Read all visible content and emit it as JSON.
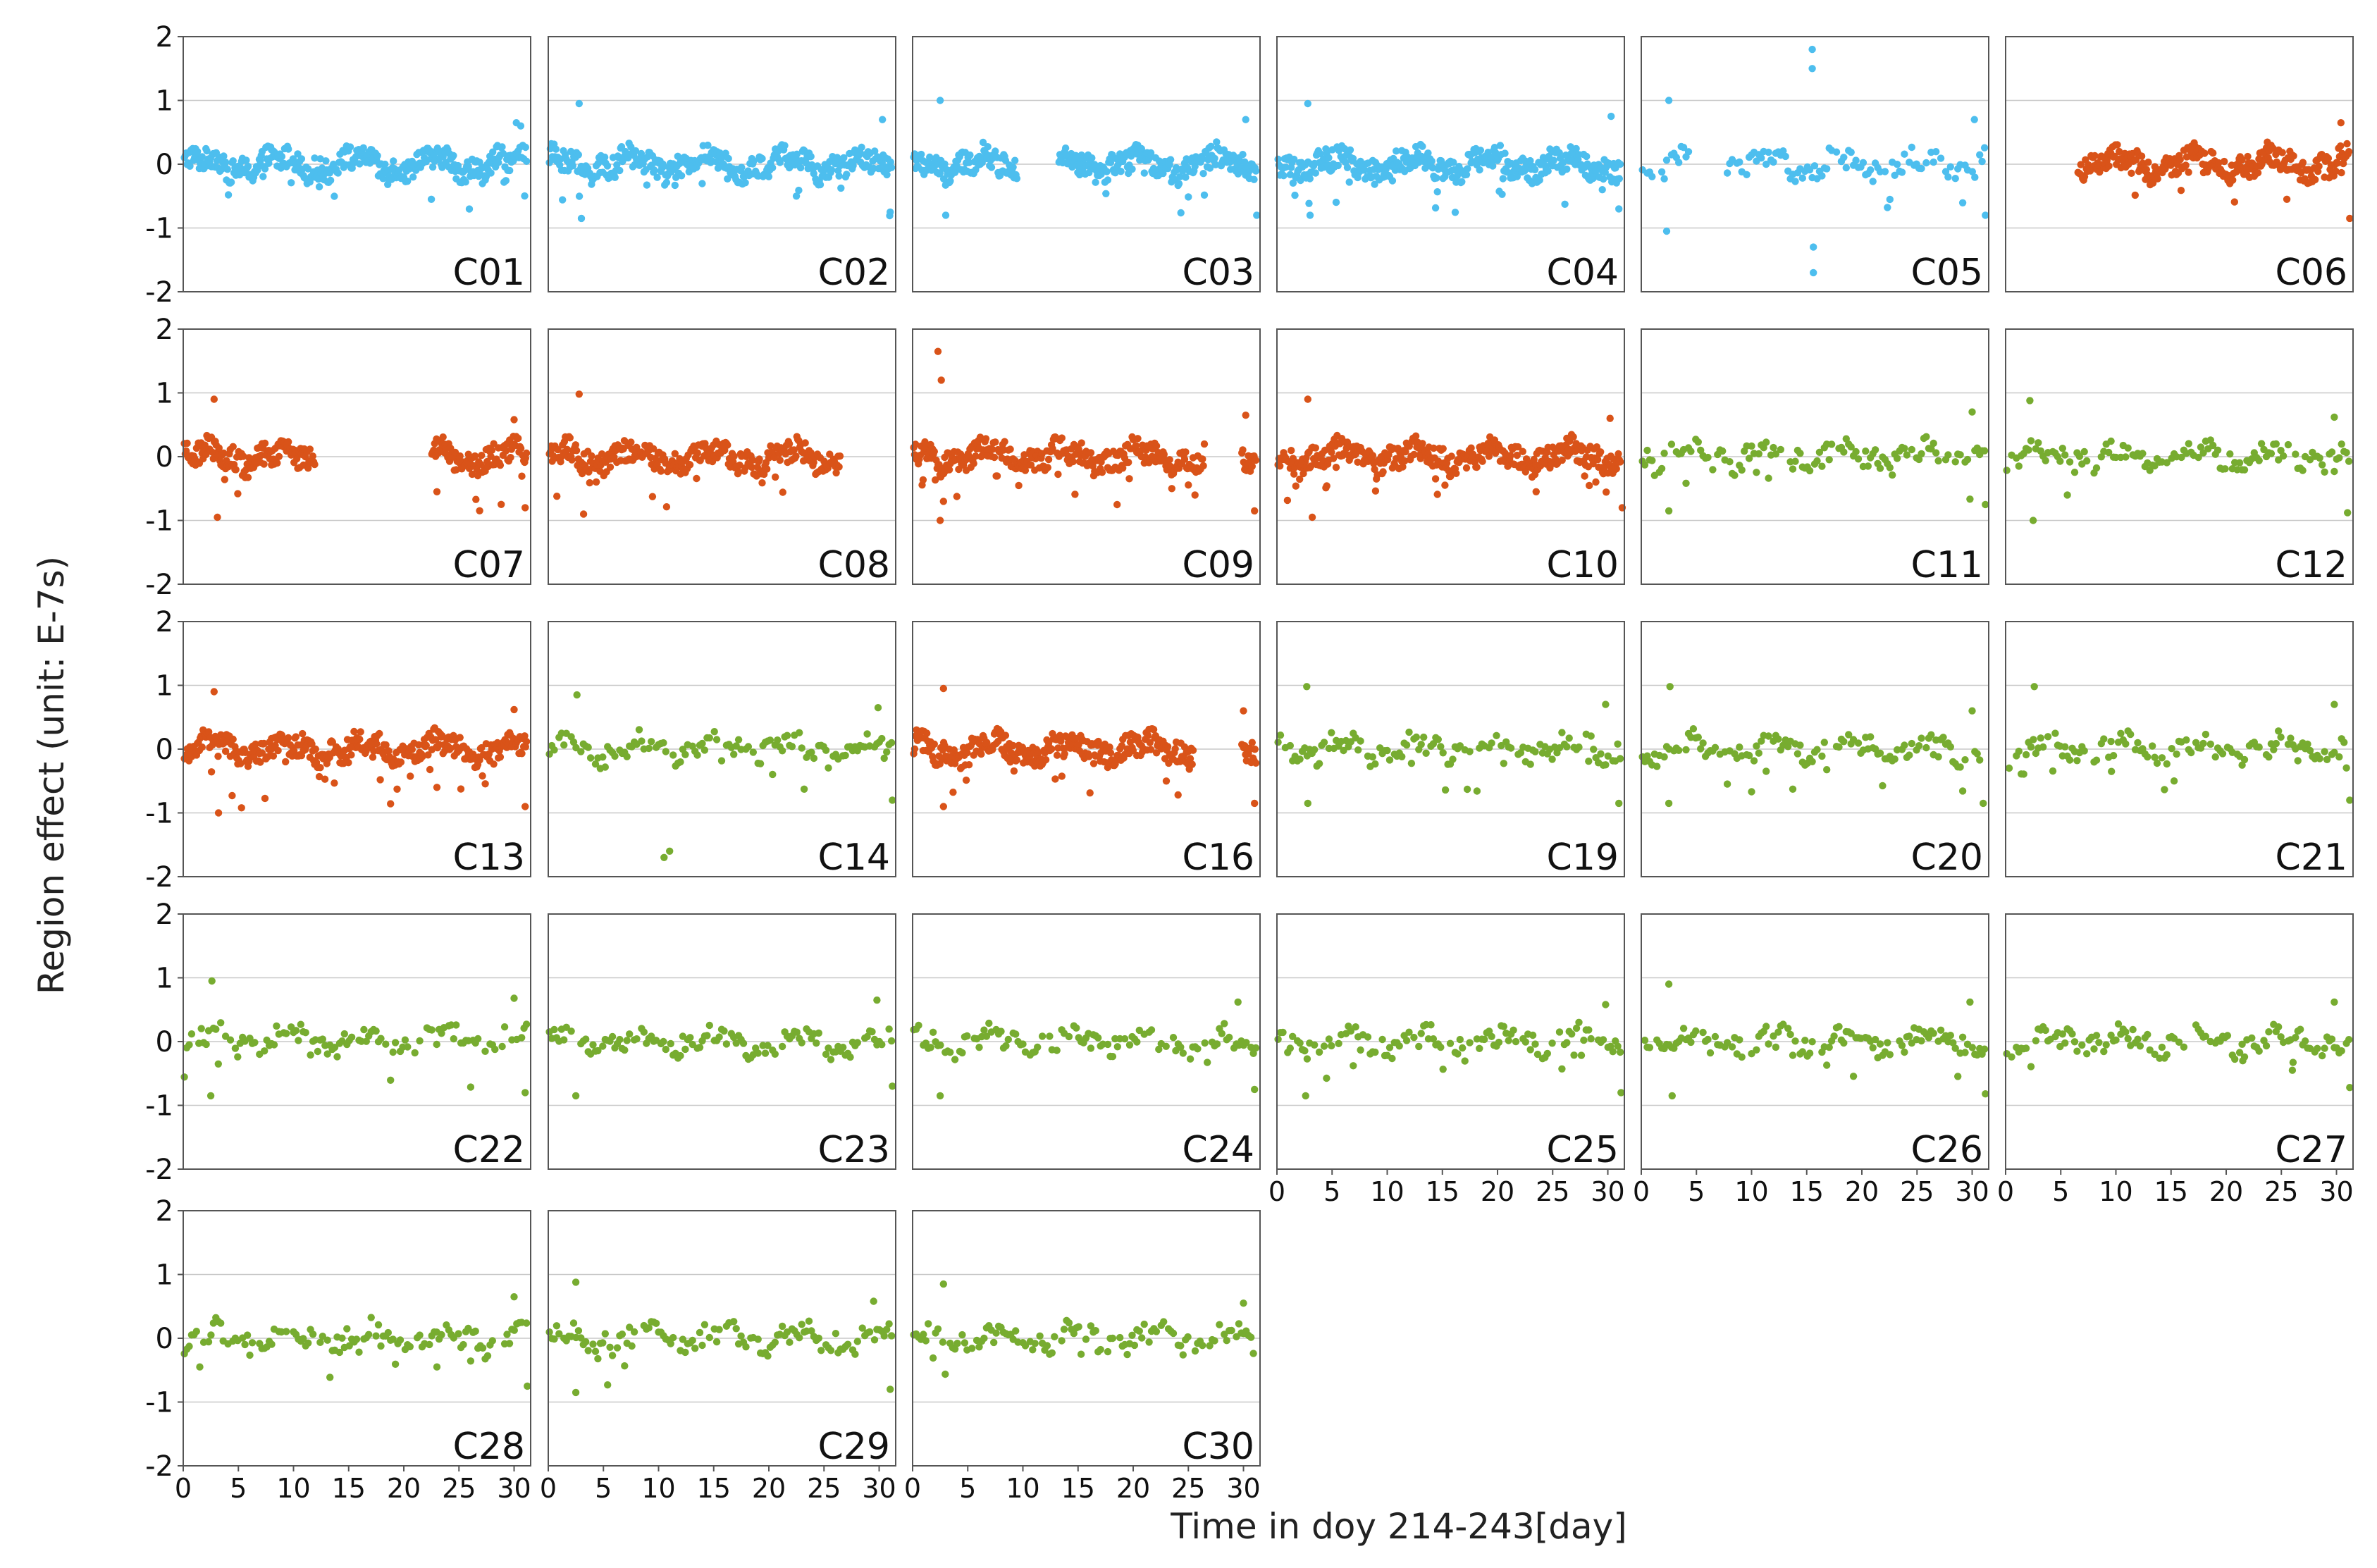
{
  "figure": {
    "ylabel": "Region effect (unit: E-7s)",
    "xlabel": "Time in doy 214-243[day]"
  },
  "colors": {
    "group_1": "#4DBEEE",
    "group_2": "#D95319",
    "group_3": "#77AC30",
    "frame": "#555555",
    "grid": "#c8c8c8"
  },
  "chart_data": {
    "type": "scatter",
    "layout": "small-multiples 5x6",
    "xlabel": "Time in doy 214-243[day]",
    "ylabel": "Region effect (unit: E-7s)",
    "xlim": [
      0,
      31.5
    ],
    "ylim": [
      -2,
      2
    ],
    "xticks": [
      0,
      5,
      10,
      15,
      20,
      25,
      30
    ],
    "xtick_labels": [
      "0",
      "5",
      "10",
      "15",
      "20",
      "25",
      "30"
    ],
    "yticks": [
      2,
      1,
      0,
      -1,
      -2
    ],
    "ytick_labels": [
      "2",
      "1",
      "0",
      "-1",
      "-2"
    ],
    "ygrid": true,
    "series": [
      {
        "name": "C01",
        "group": "group_1",
        "pattern": "dense",
        "gaps": [],
        "spikes": [
          [
            30.2,
            0.65
          ],
          [
            30.6,
            0.6
          ],
          [
            22.5,
            -0.55
          ]
        ]
      },
      {
        "name": "C02",
        "group": "group_1",
        "pattern": "dense",
        "gaps": [],
        "spikes": [
          [
            2.8,
            0.95
          ],
          [
            3.0,
            -0.85
          ],
          [
            30.3,
            0.7
          ],
          [
            31.0,
            -0.75
          ],
          [
            22.5,
            -0.5
          ]
        ]
      },
      {
        "name": "C03",
        "group": "group_1",
        "pattern": "dense",
        "gaps": [
          [
            9.5,
            13.2
          ]
        ],
        "spikes": [
          [
            2.5,
            1.0
          ],
          [
            3.0,
            -0.8
          ],
          [
            30.2,
            0.7
          ],
          [
            31.2,
            -0.8
          ]
        ]
      },
      {
        "name": "C04",
        "group": "group_1",
        "pattern": "dense",
        "gaps": [],
        "spikes": [
          [
            2.8,
            0.95
          ],
          [
            3.0,
            -0.8
          ],
          [
            30.3,
            0.75
          ],
          [
            31.0,
            -0.7
          ],
          [
            29.5,
            -0.4
          ]
        ]
      },
      {
        "name": "C05",
        "group": "group_1",
        "pattern": "sparse",
        "gaps": [
          [
            4.5,
            7.5
          ]
        ],
        "spikes": [
          [
            2.5,
            1.0
          ],
          [
            2.3,
            -1.05
          ],
          [
            15.5,
            1.8
          ],
          [
            15.5,
            1.5
          ],
          [
            15.6,
            -1.3
          ],
          [
            15.6,
            -1.7
          ],
          [
            30.2,
            0.7
          ],
          [
            31.2,
            -0.8
          ]
        ]
      },
      {
        "name": "C06",
        "group": "group_2",
        "pattern": "dense",
        "gaps": [
          [
            0,
            6.5
          ]
        ],
        "spikes": [
          [
            30.4,
            0.65
          ],
          [
            31.2,
            -0.85
          ],
          [
            25.5,
            -0.55
          ]
        ]
      },
      {
        "name": "C07",
        "group": "group_2",
        "pattern": "dense",
        "gaps": [
          [
            12,
            22.5
          ]
        ],
        "spikes": [
          [
            2.8,
            0.9
          ],
          [
            3.1,
            -0.95
          ],
          [
            30.0,
            0.58
          ],
          [
            31.0,
            -0.8
          ],
          [
            23.0,
            -0.55
          ]
        ]
      },
      {
        "name": "C08",
        "group": "group_2",
        "pattern": "dense",
        "gaps": [
          [
            26.5,
            31.5
          ]
        ],
        "spikes": [
          [
            2.8,
            0.98
          ],
          [
            3.2,
            -0.9
          ]
        ]
      },
      {
        "name": "C09",
        "group": "group_2",
        "pattern": "dense",
        "gaps": [
          [
            26.5,
            29.8
          ]
        ],
        "spikes": [
          [
            2.3,
            1.65
          ],
          [
            2.6,
            1.2
          ],
          [
            2.5,
            -1.0
          ],
          [
            2.8,
            -0.7
          ],
          [
            30.2,
            0.65
          ],
          [
            31.0,
            -0.85
          ],
          [
            23.5,
            -0.5
          ]
        ]
      },
      {
        "name": "C10",
        "group": "group_2",
        "pattern": "dense",
        "gaps": [],
        "spikes": [
          [
            2.8,
            0.9
          ],
          [
            3.2,
            -0.95
          ],
          [
            30.2,
            0.6
          ],
          [
            31.3,
            -0.8
          ],
          [
            23.5,
            -0.55
          ]
        ]
      },
      {
        "name": "C11",
        "group": "group_3",
        "pattern": "sparse",
        "gaps": [],
        "spikes": [
          [
            2.5,
            -0.85
          ],
          [
            30.0,
            0.7
          ],
          [
            31.2,
            -0.75
          ]
        ]
      },
      {
        "name": "C12",
        "group": "group_3",
        "pattern": "sparse",
        "gaps": [],
        "spikes": [
          [
            2.2,
            0.88
          ],
          [
            2.5,
            -1.0
          ],
          [
            29.8,
            0.62
          ],
          [
            31.0,
            -0.88
          ]
        ]
      },
      {
        "name": "C13",
        "group": "group_2",
        "pattern": "dense",
        "gaps": [],
        "spikes": [
          [
            2.8,
            0.9
          ],
          [
            3.2,
            -1.0
          ],
          [
            30.0,
            0.62
          ],
          [
            31.0,
            -0.9
          ],
          [
            23.0,
            -0.6
          ]
        ]
      },
      {
        "name": "C14",
        "group": "group_3",
        "pattern": "sparse",
        "gaps": [],
        "spikes": [
          [
            2.6,
            0.85
          ],
          [
            10.5,
            -1.7
          ],
          [
            11.0,
            -1.6
          ],
          [
            29.9,
            0.65
          ],
          [
            31.2,
            -0.8
          ]
        ]
      },
      {
        "name": "C16",
        "group": "group_2",
        "pattern": "dense",
        "gaps": [
          [
            25.5,
            29.8
          ]
        ],
        "spikes": [
          [
            2.8,
            0.95
          ],
          [
            2.8,
            -0.9
          ],
          [
            30.0,
            0.6
          ],
          [
            31.0,
            -0.85
          ],
          [
            23.0,
            -0.5
          ]
        ]
      },
      {
        "name": "C19",
        "group": "group_3",
        "pattern": "sparse",
        "gaps": [],
        "spikes": [
          [
            2.7,
            0.98
          ],
          [
            2.8,
            -0.85
          ],
          [
            29.8,
            0.7
          ],
          [
            31.0,
            -0.85
          ]
        ]
      },
      {
        "name": "C20",
        "group": "group_3",
        "pattern": "sparse",
        "gaps": [],
        "spikes": [
          [
            2.6,
            0.98
          ],
          [
            2.5,
            -0.85
          ],
          [
            30.0,
            0.6
          ],
          [
            31.0,
            -0.85
          ]
        ]
      },
      {
        "name": "C21",
        "group": "group_3",
        "pattern": "sparse",
        "gaps": [],
        "spikes": [
          [
            2.6,
            0.98
          ],
          [
            9.6,
            -0.35
          ],
          [
            29.8,
            0.7
          ],
          [
            31.2,
            -0.8
          ]
        ]
      },
      {
        "name": "C22",
        "group": "group_3",
        "pattern": "sparse",
        "gaps": [],
        "spikes": [
          [
            2.6,
            0.95
          ],
          [
            2.5,
            -0.85
          ],
          [
            30.0,
            0.68
          ],
          [
            31.0,
            -0.8
          ]
        ]
      },
      {
        "name": "C23",
        "group": "group_3",
        "pattern": "sparse",
        "gaps": [],
        "spikes": [
          [
            2.5,
            -0.85
          ],
          [
            29.8,
            0.65
          ],
          [
            31.2,
            -0.7
          ]
        ]
      },
      {
        "name": "C24",
        "group": "group_3",
        "pattern": "sparse",
        "gaps": [],
        "spikes": [
          [
            2.5,
            -0.85
          ],
          [
            29.5,
            0.62
          ],
          [
            31.0,
            -0.75
          ]
        ]
      },
      {
        "name": "C25",
        "group": "group_3",
        "pattern": "sparse",
        "gaps": [],
        "spikes": [
          [
            2.6,
            -0.85
          ],
          [
            29.8,
            0.58
          ],
          [
            31.2,
            -0.8
          ]
        ]
      },
      {
        "name": "C26",
        "group": "group_3",
        "pattern": "sparse",
        "gaps": [],
        "spikes": [
          [
            2.5,
            0.9
          ],
          [
            2.8,
            -0.85
          ],
          [
            29.8,
            0.62
          ],
          [
            31.2,
            -0.82
          ]
        ]
      },
      {
        "name": "C27",
        "group": "group_3",
        "pattern": "sparse",
        "gaps": [],
        "spikes": [
          [
            29.8,
            0.62
          ],
          [
            31.2,
            -0.72
          ],
          [
            21.5,
            -0.3
          ],
          [
            26.0,
            -0.45
          ]
        ]
      },
      {
        "name": "C28",
        "group": "group_3",
        "pattern": "sparse",
        "gaps": [],
        "spikes": [
          [
            30.0,
            0.65
          ],
          [
            31.2,
            -0.75
          ],
          [
            23.0,
            -0.45
          ],
          [
            1.5,
            -0.45
          ]
        ]
      },
      {
        "name": "C29",
        "group": "group_3",
        "pattern": "sparse",
        "gaps": [],
        "spikes": [
          [
            2.5,
            0.88
          ],
          [
            2.5,
            -0.85
          ],
          [
            29.5,
            0.58
          ],
          [
            31.0,
            -0.8
          ]
        ]
      },
      {
        "name": "C30",
        "group": "group_3",
        "pattern": "sparse",
        "gaps": [],
        "spikes": [
          [
            2.8,
            0.85
          ],
          [
            30.0,
            0.55
          ]
        ]
      }
    ]
  }
}
